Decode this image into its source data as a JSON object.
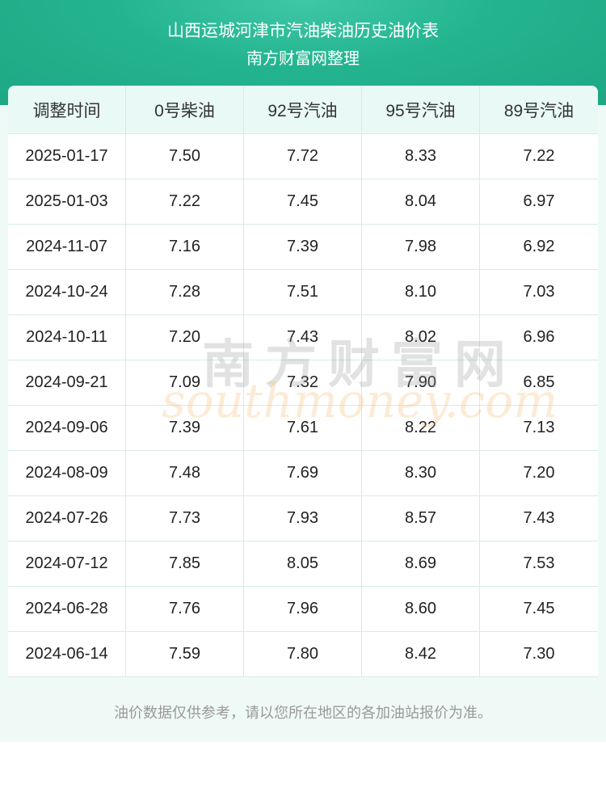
{
  "header": {
    "title": "山西运城河津市汽油柴油历史油价表",
    "subtitle": "南方财富网整理"
  },
  "table": {
    "columns": [
      "调整时间",
      "0号柴油",
      "92号汽油",
      "95号汽油",
      "89号汽油"
    ],
    "rows": [
      [
        "2025-01-17",
        "7.50",
        "7.72",
        "8.33",
        "7.22"
      ],
      [
        "2025-01-03",
        "7.22",
        "7.45",
        "8.04",
        "6.97"
      ],
      [
        "2024-11-07",
        "7.16",
        "7.39",
        "7.98",
        "6.92"
      ],
      [
        "2024-10-24",
        "7.28",
        "7.51",
        "8.10",
        "7.03"
      ],
      [
        "2024-10-11",
        "7.20",
        "7.43",
        "8.02",
        "6.96"
      ],
      [
        "2024-09-21",
        "7.09",
        "7.32",
        "7.90",
        "6.85"
      ],
      [
        "2024-09-06",
        "7.39",
        "7.61",
        "8.22",
        "7.13"
      ],
      [
        "2024-08-09",
        "7.48",
        "7.69",
        "8.30",
        "7.20"
      ],
      [
        "2024-07-26",
        "7.73",
        "7.93",
        "8.57",
        "7.43"
      ],
      [
        "2024-07-12",
        "7.85",
        "8.05",
        "8.69",
        "7.53"
      ],
      [
        "2024-06-28",
        "7.76",
        "7.96",
        "8.60",
        "7.45"
      ],
      [
        "2024-06-14",
        "7.59",
        "7.80",
        "8.42",
        "7.30"
      ]
    ]
  },
  "watermark": {
    "brand": "南方财富网",
    "site": "southmoney.com"
  },
  "footer": {
    "note": "油价数据仅供参考，请以您所在地区的各加油站报价为准。"
  }
}
